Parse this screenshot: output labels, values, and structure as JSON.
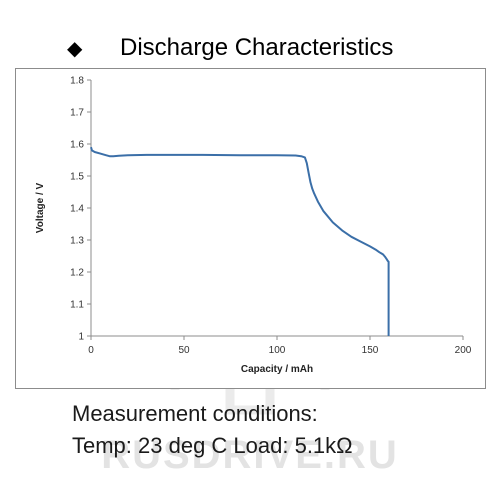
{
  "header": {
    "bullet": "◆",
    "title": "Discharge Characteristics"
  },
  "conditions": {
    "line1": "Measurement conditions:",
    "line2": "Temp: 23 deg C  Load: 5.1kΩ"
  },
  "watermark": {
    "text": "RUSDRIVE.RU"
  },
  "chart_data": {
    "type": "line",
    "title": "",
    "xlabel": "Capacity  /  mAh",
    "ylabel": "Voltage  /  V",
    "xlim": [
      0,
      200
    ],
    "ylim": [
      1.0,
      1.8
    ],
    "xticks": [
      0,
      50,
      100,
      150,
      200
    ],
    "yticks": [
      1,
      1.1,
      1.2,
      1.3,
      1.4,
      1.5,
      1.6,
      1.7,
      1.8
    ],
    "ytick_labels": [
      "1",
      "1.1",
      "1.2",
      "1.3",
      "1.4",
      "1.5",
      "1.6",
      "1.7",
      "1.8"
    ],
    "grid": false,
    "series_color": "#3b6fa8",
    "series": [
      {
        "x": [
          0,
          0.5,
          2,
          5,
          8,
          10,
          12,
          15,
          20,
          30,
          40,
          60,
          80,
          100,
          110,
          113,
          115,
          116,
          117,
          118,
          119,
          120,
          122,
          125,
          130,
          135,
          140,
          145,
          150,
          153,
          155,
          157,
          158,
          159,
          159.5,
          160,
          160
        ],
        "y": [
          1.59,
          1.58,
          1.575,
          1.57,
          1.565,
          1.562,
          1.562,
          1.563,
          1.565,
          1.566,
          1.566,
          1.566,
          1.565,
          1.565,
          1.564,
          1.562,
          1.558,
          1.54,
          1.51,
          1.48,
          1.46,
          1.445,
          1.42,
          1.39,
          1.355,
          1.33,
          1.31,
          1.295,
          1.28,
          1.27,
          1.262,
          1.255,
          1.248,
          1.24,
          1.235,
          1.232,
          1.0
        ]
      }
    ]
  }
}
